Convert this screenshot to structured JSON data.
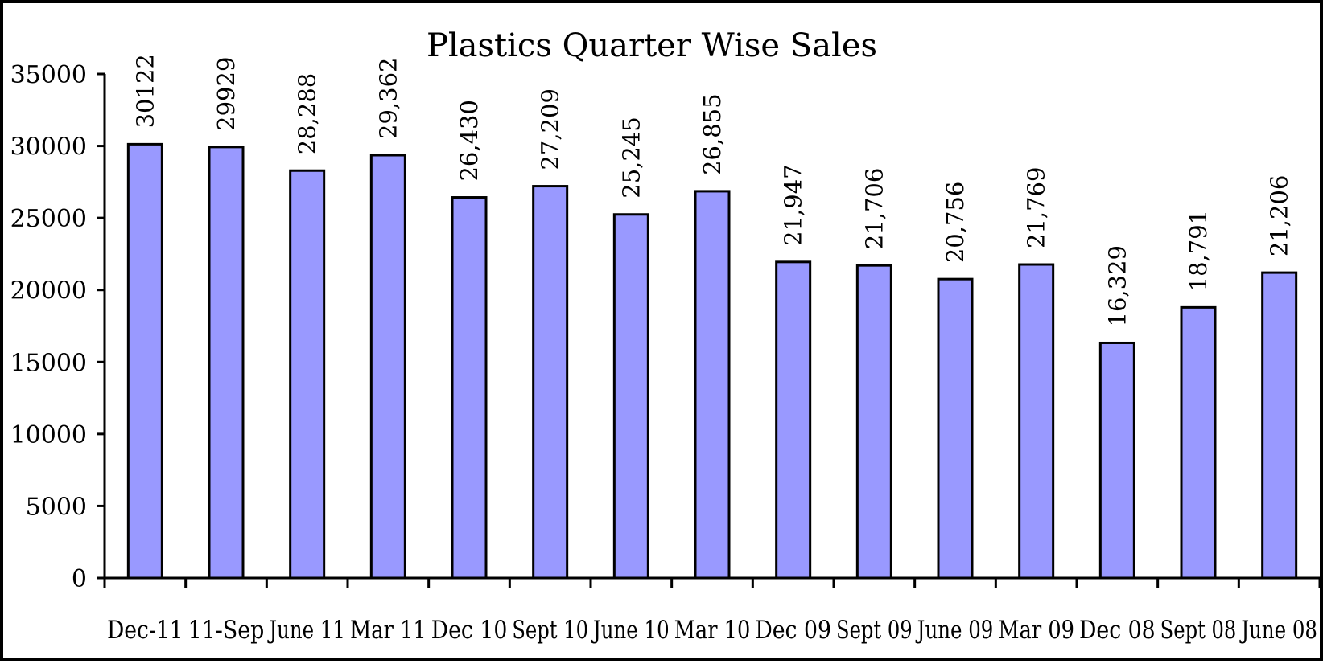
{
  "chart_data": {
    "type": "bar",
    "title": "Plastics Quarter Wise Sales",
    "xlabel": "",
    "ylabel": "",
    "ylim": [
      0,
      35000
    ],
    "yticks": [
      "0",
      "5000",
      "10000",
      "15000",
      "20000",
      "25000",
      "30000",
      "35000"
    ],
    "grid": false,
    "legend": "none",
    "colors": {
      "bar_fill": "#9999ff",
      "bar_stroke": "#000000"
    },
    "categories": [
      "Dec-11",
      "11-Sep",
      "June 11",
      "Mar 11",
      "Dec 10",
      "Sept 10",
      "June 10",
      "Mar 10",
      "Dec 09",
      "Sept 09",
      "June 09",
      "Mar 09",
      "Dec 08",
      "Sept 08",
      "June 08"
    ],
    "values": [
      30122,
      29929,
      28288,
      29362,
      26430,
      27209,
      25245,
      26855,
      21947,
      21706,
      20756,
      21769,
      16329,
      18791,
      21206
    ],
    "data_labels": [
      "30122",
      "29929",
      "28,288",
      "29,362",
      "26,430",
      "27,209",
      "25,245",
      "26,855",
      "21,947",
      "21,706",
      "20,756",
      "21,769",
      "16,329",
      "18,791",
      "21,206"
    ]
  }
}
